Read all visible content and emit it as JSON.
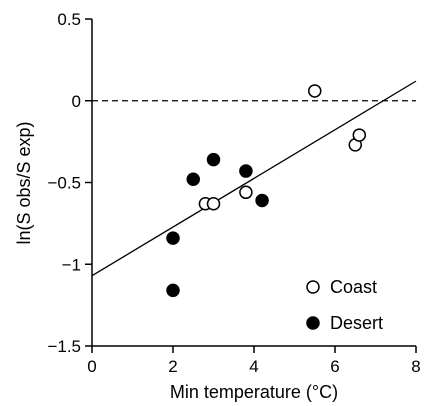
{
  "chart_data": {
    "type": "scatter",
    "title": "",
    "xlabel": "Min temperature (°C)",
    "ylabel": "ln(S obs/S exp)",
    "xlim": [
      0,
      8
    ],
    "ylim": [
      -1.5,
      0.5
    ],
    "x_ticks": [
      0,
      2,
      4,
      6,
      8
    ],
    "x_tick_labels": [
      "0",
      "2",
      "4",
      "6",
      "8"
    ],
    "y_ticks": [
      0.5,
      0,
      -0.5,
      -1,
      -1.5
    ],
    "y_tick_labels": [
      "0.5",
      "0",
      "−0.5",
      "−1",
      "−1.5"
    ],
    "grid": false,
    "reference_line": {
      "y": 0,
      "style": "dashed"
    },
    "fit_line": {
      "x": [
        0,
        8
      ],
      "y": [
        -1.07,
        0.12
      ]
    },
    "legend_position": "bottom-right",
    "series": [
      {
        "name": "Coast",
        "marker": "open-circle",
        "points": [
          {
            "x": 2.8,
            "y": -0.63
          },
          {
            "x": 3.0,
            "y": -0.63
          },
          {
            "x": 3.8,
            "y": -0.56
          },
          {
            "x": 5.5,
            "y": 0.06
          },
          {
            "x": 6.5,
            "y": -0.27
          },
          {
            "x": 6.6,
            "y": -0.21
          }
        ]
      },
      {
        "name": "Desert",
        "marker": "filled-circle",
        "points": [
          {
            "x": 2.0,
            "y": -0.84
          },
          {
            "x": 2.0,
            "y": -1.16
          },
          {
            "x": 2.5,
            "y": -0.48
          },
          {
            "x": 3.0,
            "y": -0.36
          },
          {
            "x": 3.8,
            "y": -0.43
          },
          {
            "x": 4.2,
            "y": -0.61
          }
        ]
      }
    ]
  }
}
